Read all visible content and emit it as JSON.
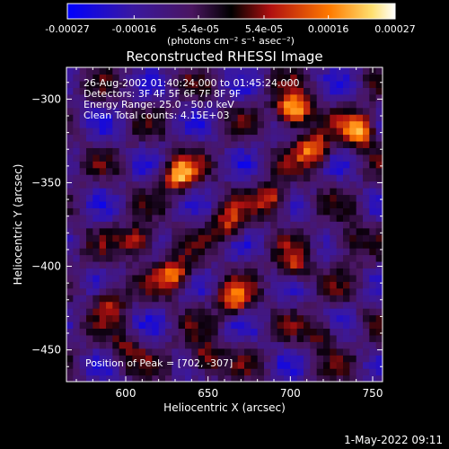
{
  "chart_data": {
    "type": "heatmap",
    "title": "Reconstructed RHESSI Image",
    "xlabel": "Heliocentric X (arcsec)",
    "ylabel": "Heliocentric Y (arcsec)",
    "xlim": [
      564,
      756
    ],
    "ylim": [
      -469,
      -281
    ],
    "x_ticks": [
      600,
      650,
      700,
      750
    ],
    "y_ticks": [
      -300,
      -350,
      -400,
      -450
    ],
    "colorbar": {
      "ticks": [
        "-0.00027",
        "-0.00016",
        "-5.4e-05",
        "5.4e-05",
        "0.00016",
        "0.00027"
      ],
      "values": [
        -0.00027,
        -0.00016,
        -5.4e-05,
        5.4e-05,
        0.00016,
        0.00027
      ],
      "units": "(photons cm⁻² s⁻¹ asec⁻²)",
      "colors": [
        "#0000ff",
        "#5a1a8c",
        "#000000",
        "#b01010",
        "#ff7a00",
        "#ffffff"
      ]
    },
    "annotations": [
      "26-Aug-2002 01:40:24.000 to 01:45:24.000",
      "Detectors: 3F 4F 5F 6F 7F 8F 9F",
      "Energy Range: 25.0 - 50.0 keV",
      "Clean      Total counts: 4.15E+03"
    ],
    "peak_label": "Position of Peak = [702, -307]",
    "peak": [
      702,
      -307
    ],
    "bright_sources": [
      {
        "x": 702,
        "y": -307,
        "value": 0.00027
      },
      {
        "x": 742,
        "y": -318,
        "value": 0.00022
      },
      {
        "x": 714,
        "y": -330,
        "value": 0.00019
      },
      {
        "x": 632,
        "y": -345,
        "value": 0.0002
      },
      {
        "x": 690,
        "y": -360,
        "value": 0.00016
      },
      {
        "x": 608,
        "y": -385,
        "value": 0.00017
      },
      {
        "x": 662,
        "y": -375,
        "value": 0.00014
      },
      {
        "x": 630,
        "y": -405,
        "value": 0.00019
      },
      {
        "x": 702,
        "y": -400,
        "value": 0.00013
      },
      {
        "x": 665,
        "y": -420,
        "value": 0.00015
      },
      {
        "x": 590,
        "y": -420,
        "value": 0.00012
      },
      {
        "x": 735,
        "y": -385,
        "value": 0.00012
      },
      {
        "x": 720,
        "y": -440,
        "value": 0.00011
      },
      {
        "x": 648,
        "y": -455,
        "value": 0.00016
      },
      {
        "x": 600,
        "y": -450,
        "value": 0.0001
      }
    ],
    "grid": false
  },
  "footer": {
    "date": "1-May-2022 09:11"
  }
}
